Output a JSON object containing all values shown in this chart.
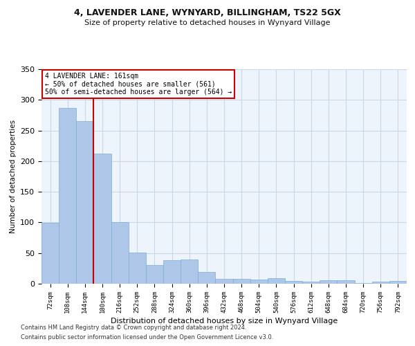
{
  "title1": "4, LAVENDER LANE, WYNYARD, BILLINGHAM, TS22 5GX",
  "title2": "Size of property relative to detached houses in Wynyard Village",
  "xlabel": "Distribution of detached houses by size in Wynyard Village",
  "ylabel": "Number of detached properties",
  "footnote1": "Contains HM Land Registry data © Crown copyright and database right 2024.",
  "footnote2": "Contains public sector information licensed under the Open Government Licence v3.0.",
  "categories": [
    "72sqm",
    "108sqm",
    "144sqm",
    "180sqm",
    "216sqm",
    "252sqm",
    "288sqm",
    "324sqm",
    "360sqm",
    "396sqm",
    "432sqm",
    "468sqm",
    "504sqm",
    "540sqm",
    "576sqm",
    "612sqm",
    "648sqm",
    "684sqm",
    "720sqm",
    "756sqm",
    "792sqm"
  ],
  "values": [
    99,
    287,
    265,
    212,
    101,
    51,
    30,
    38,
    40,
    19,
    8,
    8,
    7,
    9,
    5,
    3,
    6,
    6,
    1,
    3,
    4
  ],
  "bar_color": "#aec6e8",
  "bar_edge_color": "#7aadd4",
  "grid_color": "#c8d8e8",
  "bg_color": "#eef4fb",
  "red_line_x": 2.5,
  "annotation_text": "4 LAVENDER LANE: 161sqm\n← 50% of detached houses are smaller (561)\n50% of semi-detached houses are larger (564) →",
  "annotation_box_color": "#ffffff",
  "annotation_box_edge": "#cc0000",
  "red_line_color": "#cc0000",
  "ylim": [
    0,
    350
  ],
  "yticks": [
    0,
    50,
    100,
    150,
    200,
    250,
    300,
    350
  ]
}
